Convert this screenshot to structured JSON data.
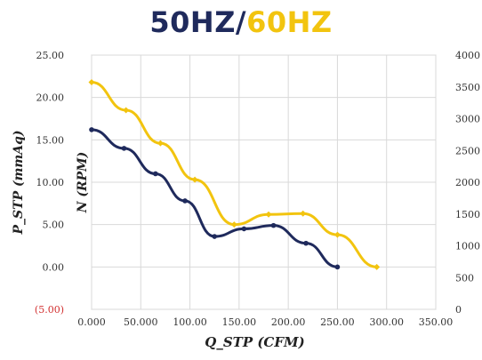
{
  "title": {
    "part1": "50HZ",
    "separator": "/",
    "part2": "60HZ",
    "color1": "#1f2a5c",
    "color2": "#f2c40f"
  },
  "chart_data": {
    "type": "line",
    "xlabel": "Q_STP (CFM)",
    "ylabel_left": "P_STP (mmAq)",
    "ylabel_right": "N (RPM)",
    "xlim": [
      0,
      350
    ],
    "ylim_left": [
      -5,
      25
    ],
    "ylim_right": [
      0,
      4000
    ],
    "grid": true,
    "x_ticks": [
      "0.000",
      "50.000",
      "100.00",
      "150.00",
      "200.00",
      "250.00",
      "300.00",
      "350.00"
    ],
    "x_tick_values": [
      0,
      50,
      100,
      150,
      200,
      250,
      300,
      350
    ],
    "y_left_ticks": [
      "25.00",
      "20.00",
      "15.00",
      "10.00",
      "5.00",
      "0.00",
      "(5.00)"
    ],
    "y_left_tick_values": [
      25,
      20,
      15,
      10,
      5,
      0,
      -5
    ],
    "y_left_negative_color": "#d23030",
    "y_right_ticks": [
      "4000",
      "3500",
      "3000",
      "2500",
      "2000",
      "1500",
      "1000",
      "500",
      "0"
    ],
    "y_right_tick_values": [
      4000,
      3500,
      3000,
      2500,
      2000,
      1500,
      1000,
      500,
      0
    ],
    "series": [
      {
        "color": "#1f2a5c",
        "marker": "circle",
        "x": [
          0,
          33,
          65,
          95,
          125,
          155,
          185,
          218,
          250
        ],
        "y": [
          16.2,
          14,
          11,
          7.8,
          3.6,
          4.5,
          4.9,
          2.8,
          0
        ]
      },
      {
        "color": "#f2c40f",
        "marker": "diamond",
        "x": [
          0,
          35,
          70,
          105,
          145,
          180,
          215,
          250,
          290
        ],
        "y": [
          21.8,
          18.5,
          14.6,
          10.3,
          5.0,
          6.2,
          6.3,
          3.8,
          0
        ]
      }
    ]
  }
}
